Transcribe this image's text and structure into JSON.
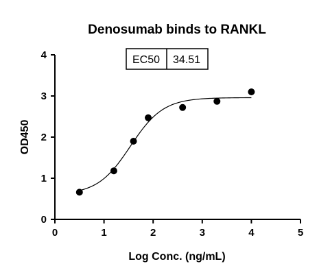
{
  "chart_data": {
    "type": "scatter",
    "title": "Denosumab binds to RANKL",
    "xlabel": "Log Conc. (ng/mL)",
    "ylabel": "OD450",
    "xlim": [
      0,
      5
    ],
    "ylim": [
      0,
      4
    ],
    "xticks": [
      "0",
      "1",
      "2",
      "3",
      "4",
      "5"
    ],
    "yticks": [
      "0",
      "1",
      "2",
      "3",
      "4"
    ],
    "points": [
      {
        "x": 0.5,
        "y": 0.66
      },
      {
        "x": 1.2,
        "y": 1.18
      },
      {
        "x": 1.6,
        "y": 1.9
      },
      {
        "x": 1.9,
        "y": 2.47
      },
      {
        "x": 2.6,
        "y": 2.72
      },
      {
        "x": 3.3,
        "y": 2.87
      },
      {
        "x": 4.0,
        "y": 3.1
      }
    ],
    "fit": {
      "bottom": 0.6,
      "top": 2.96,
      "log_ec50": 1.538,
      "hill": 1.3
    },
    "annotation": {
      "label": "EC50",
      "value": "34.51"
    }
  }
}
